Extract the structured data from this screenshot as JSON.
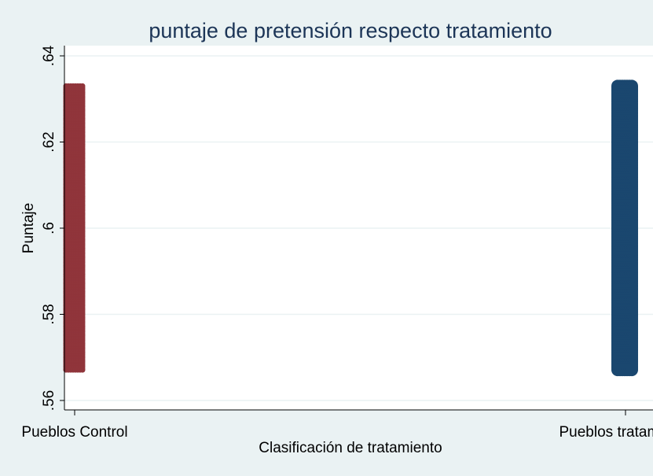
{
  "chart_data": {
    "type": "scatter",
    "title": "puntaje de pretensión respecto tratamiento",
    "xlabel": "Clasificación de tratamiento",
    "ylabel": "Puntaje",
    "ylim": [
      0.56,
      0.64
    ],
    "yticks": [
      {
        "value": 0.56,
        "label": ".56"
      },
      {
        "value": 0.58,
        "label": ".58"
      },
      {
        "value": 0.6,
        "label": ".6"
      },
      {
        "value": 0.62,
        "label": ".62"
      },
      {
        "value": 0.64,
        "label": ".64"
      }
    ],
    "categories": [
      "Pueblos Control",
      "Pueblos tratamiento"
    ],
    "grid": true,
    "series": [
      {
        "category": "Pueblos Control",
        "color": "#90353b",
        "x": 0,
        "y_min": 0.567,
        "y_max": 0.633
      },
      {
        "category": "Pueblos tratamiento",
        "color": "#1a476f",
        "x": 1,
        "y_min": 0.567,
        "y_max": 0.633
      }
    ]
  }
}
